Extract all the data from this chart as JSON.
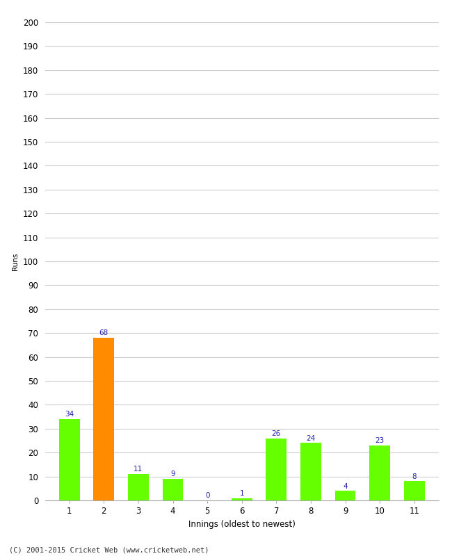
{
  "categories": [
    1,
    2,
    3,
    4,
    5,
    6,
    7,
    8,
    9,
    10,
    11
  ],
  "values": [
    34,
    68,
    11,
    9,
    0,
    1,
    26,
    24,
    4,
    23,
    8
  ],
  "bar_colors": [
    "#66ff00",
    "#ff8c00",
    "#66ff00",
    "#66ff00",
    "#66ff00",
    "#66ff00",
    "#66ff00",
    "#66ff00",
    "#66ff00",
    "#66ff00",
    "#66ff00"
  ],
  "xlabel": "Innings (oldest to newest)",
  "ylabel": "Runs",
  "ylim": [
    0,
    200
  ],
  "yticks": [
    0,
    10,
    20,
    30,
    40,
    50,
    60,
    70,
    80,
    90,
    100,
    110,
    120,
    130,
    140,
    150,
    160,
    170,
    180,
    190,
    200
  ],
  "label_color": "#2222aa",
  "label_fontsize": 7.5,
  "axis_tick_fontsize": 8.5,
  "ylabel_fontsize": 7.5,
  "xlabel_fontsize": 8.5,
  "background_color": "#ffffff",
  "grid_color": "#cccccc",
  "footer": "(C) 2001-2015 Cricket Web (www.cricketweb.net)",
  "footer_fontsize": 7.5
}
